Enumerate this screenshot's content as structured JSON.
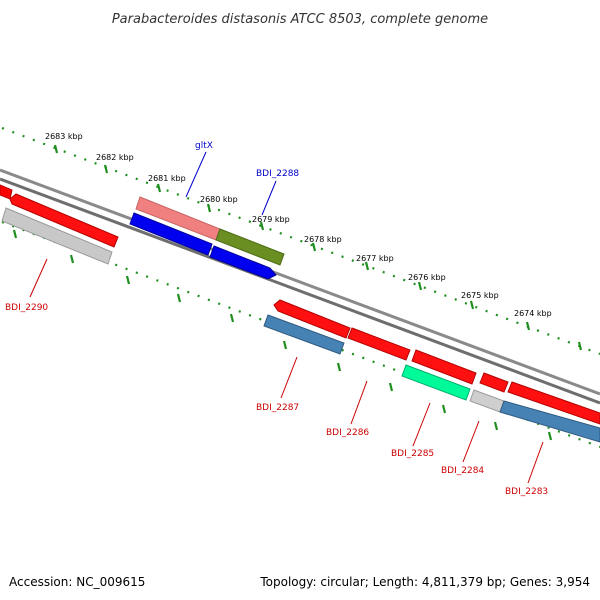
{
  "title": "Parabacteroides distasonis ATCC 8503, complete genome",
  "footer": {
    "accession": "Accession: NC_009615",
    "summary": "Topology: circular; Length: 4,811,379 bp; Genes: 3,954"
  },
  "colors": {
    "backbone": "#7a7a7a",
    "ruler": "#1f8f1f",
    "label_blue": "#0000cc",
    "label_red": "#cc0000"
  },
  "kbp_labels": [
    "2683 kbp",
    "2682 kbp",
    "2681 kbp",
    "2680 kbp",
    "2679 kbp",
    "2678 kbp",
    "2677 kbp",
    "2676 kbp",
    "2675 kbp",
    "2674 kbp"
  ],
  "gene_labels": {
    "gltX": "gltX",
    "BDI_2288": "BDI_2288",
    "BDI_2290": "BDI_2290",
    "BDI_2287": "BDI_2287",
    "BDI_2286": "BDI_2286",
    "BDI_2285": "BDI_2285",
    "BDI_2284": "BDI_2284",
    "BDI_2283": "BDI_2283"
  }
}
